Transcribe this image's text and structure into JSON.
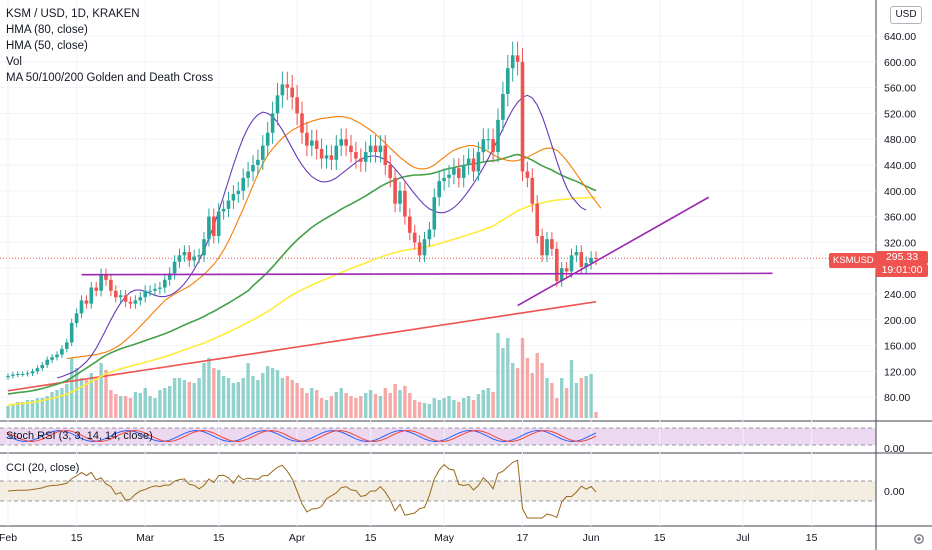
{
  "legend": {
    "symbol": "KSM / USD, 1D, KRAKEN",
    "hma80": "HMA (80, close)",
    "hma50": "HMA (50, close)",
    "vol": "Vol",
    "ma_cross": "MA 50/100/200 Golden and Death Cross"
  },
  "currency_button": "USD",
  "stoch_title": "Stoch RSI (3, 3, 14, 14, close)",
  "cci_title": "CCI (20, close)",
  "last_price": {
    "symbol": "KSMUSD",
    "price": "295.33",
    "countdown": "19:01:00"
  },
  "colors": {
    "up": "#26a69a",
    "down": "#ef5350",
    "hma80": "#f57c00",
    "hma50": "#673ab7",
    "ma50": "#43a047",
    "ma100": "#ffeb3b",
    "ma200": "#ef5350",
    "trend": "#9c27b0"
  },
  "chart_data": {
    "type": "candlestick",
    "price_axis": {
      "ticks": [
        "640.00",
        "600.00",
        "560.00",
        "520.00",
        "480.00",
        "440.00",
        "400.00",
        "360.00",
        "320.00",
        "280.00",
        "240.00",
        "200.00",
        "160.00",
        "120.00",
        "80.00"
      ],
      "values": [
        640,
        600,
        560,
        520,
        480,
        440,
        400,
        360,
        320,
        280,
        240,
        200,
        160,
        120,
        80
      ],
      "range": [
        40,
        668
      ]
    },
    "stoch_axis": {
      "ticks": [
        "0.00"
      ]
    },
    "cci_axis": {
      "ticks": [
        "0.00"
      ]
    },
    "time_axis": {
      "labels": [
        "Feb",
        "15",
        "Mar",
        "15",
        "Apr",
        "15",
        "May",
        "17",
        "Jun",
        "15",
        "Jul",
        "15"
      ],
      "day_index": [
        0,
        14,
        28,
        43,
        59,
        74,
        89,
        105,
        119,
        133,
        150,
        164
      ]
    },
    "closes": [
      113,
      115,
      116,
      116,
      117,
      120,
      125,
      130,
      138,
      142,
      146,
      155,
      165,
      195,
      210,
      230,
      225,
      250,
      245,
      270,
      262,
      245,
      235,
      238,
      228,
      225,
      230,
      235,
      245,
      245,
      248,
      250,
      262,
      272,
      290,
      300,
      305,
      292,
      298,
      300,
      325,
      360,
      330,
      368,
      372,
      385,
      395,
      400,
      420,
      430,
      440,
      448,
      470,
      490,
      520,
      548,
      565,
      560,
      545,
      520,
      490,
      470,
      478,
      465,
      450,
      455,
      448,
      470,
      480,
      470,
      460,
      450,
      445,
      460,
      470,
      460,
      470,
      440,
      420,
      380,
      400,
      360,
      335,
      320,
      300,
      325,
      340,
      390,
      415,
      420,
      425,
      435,
      420,
      440,
      450,
      430,
      460,
      480,
      480,
      460,
      510,
      550,
      590,
      610,
      600,
      430,
      420,
      380,
      330,
      300,
      325,
      310,
      260,
      280,
      275,
      300,
      305,
      282,
      288,
      296,
      295
    ],
    "volume": [
      12,
      14,
      16,
      16,
      18,
      18,
      20,
      20,
      22,
      26,
      28,
      30,
      34,
      60,
      50,
      40,
      38,
      45,
      40,
      55,
      48,
      28,
      24,
      22,
      22,
      20,
      26,
      25,
      30,
      22,
      20,
      28,
      30,
      32,
      40,
      40,
      38,
      36,
      35,
      40,
      55,
      60,
      50,
      48,
      42,
      40,
      35,
      36,
      40,
      55,
      42,
      38,
      45,
      52,
      50,
      48,
      40,
      42,
      38,
      35,
      30,
      25,
      30,
      28,
      20,
      18,
      22,
      26,
      30,
      25,
      22,
      20,
      22,
      25,
      28,
      24,
      22,
      30,
      25,
      34,
      28,
      32,
      25,
      18,
      16,
      15,
      14,
      20,
      18,
      20,
      22,
      18,
      16,
      20,
      22,
      18,
      24,
      28,
      30,
      26,
      85,
      70,
      80,
      55,
      50,
      80,
      60,
      45,
      65,
      55,
      40,
      35,
      20,
      40,
      30,
      58,
      35,
      40,
      42,
      44,
      6
    ],
    "hma80": [
      140,
      141,
      142,
      143,
      144,
      145,
      146,
      148,
      150,
      153,
      157,
      162,
      168,
      175,
      182,
      190,
      198,
      206,
      214,
      222,
      230,
      235,
      240,
      244,
      248,
      252,
      258,
      264,
      270,
      278,
      286,
      296,
      308,
      322,
      338,
      355,
      372,
      390,
      408,
      426,
      442,
      455,
      465,
      474,
      482,
      488,
      494,
      498,
      502,
      505,
      508,
      510,
      512,
      513,
      514,
      515,
      515,
      514,
      512,
      508,
      504,
      499,
      494,
      488,
      481,
      474,
      466,
      459,
      452,
      446,
      440,
      436,
      434,
      434,
      436,
      440,
      446,
      452,
      458,
      463,
      466,
      468,
      470,
      470,
      468,
      465,
      461,
      456,
      452,
      449,
      447,
      446,
      447,
      449,
      452,
      456,
      460,
      464,
      466,
      466,
      463,
      456,
      447,
      437,
      426,
      415,
      404,
      393,
      383,
      373
    ],
    "hma50": [
      110,
      112,
      115,
      118,
      122,
      128,
      135,
      144,
      156,
      170,
      185,
      200,
      214,
      226,
      236,
      243,
      246,
      246,
      244,
      241,
      238,
      236,
      236,
      238,
      242,
      248,
      256,
      266,
      278,
      292,
      308,
      326,
      346,
      368,
      392,
      416,
      440,
      462,
      482,
      498,
      510,
      518,
      522,
      520,
      515,
      506,
      494,
      480,
      466,
      452,
      440,
      430,
      422,
      417,
      414,
      414,
      416,
      420,
      426,
      432,
      438,
      444,
      449,
      452,
      454,
      454,
      452,
      448,
      442,
      434,
      425,
      415,
      405,
      395,
      386,
      378,
      372,
      368,
      366,
      366,
      369,
      374,
      381,
      390,
      400,
      411,
      423,
      436,
      450,
      465,
      480,
      496,
      512,
      526,
      537,
      545,
      548,
      544,
      533,
      516,
      494,
      470,
      446,
      424,
      405,
      391,
      382,
      374,
      370
    ]
  }
}
